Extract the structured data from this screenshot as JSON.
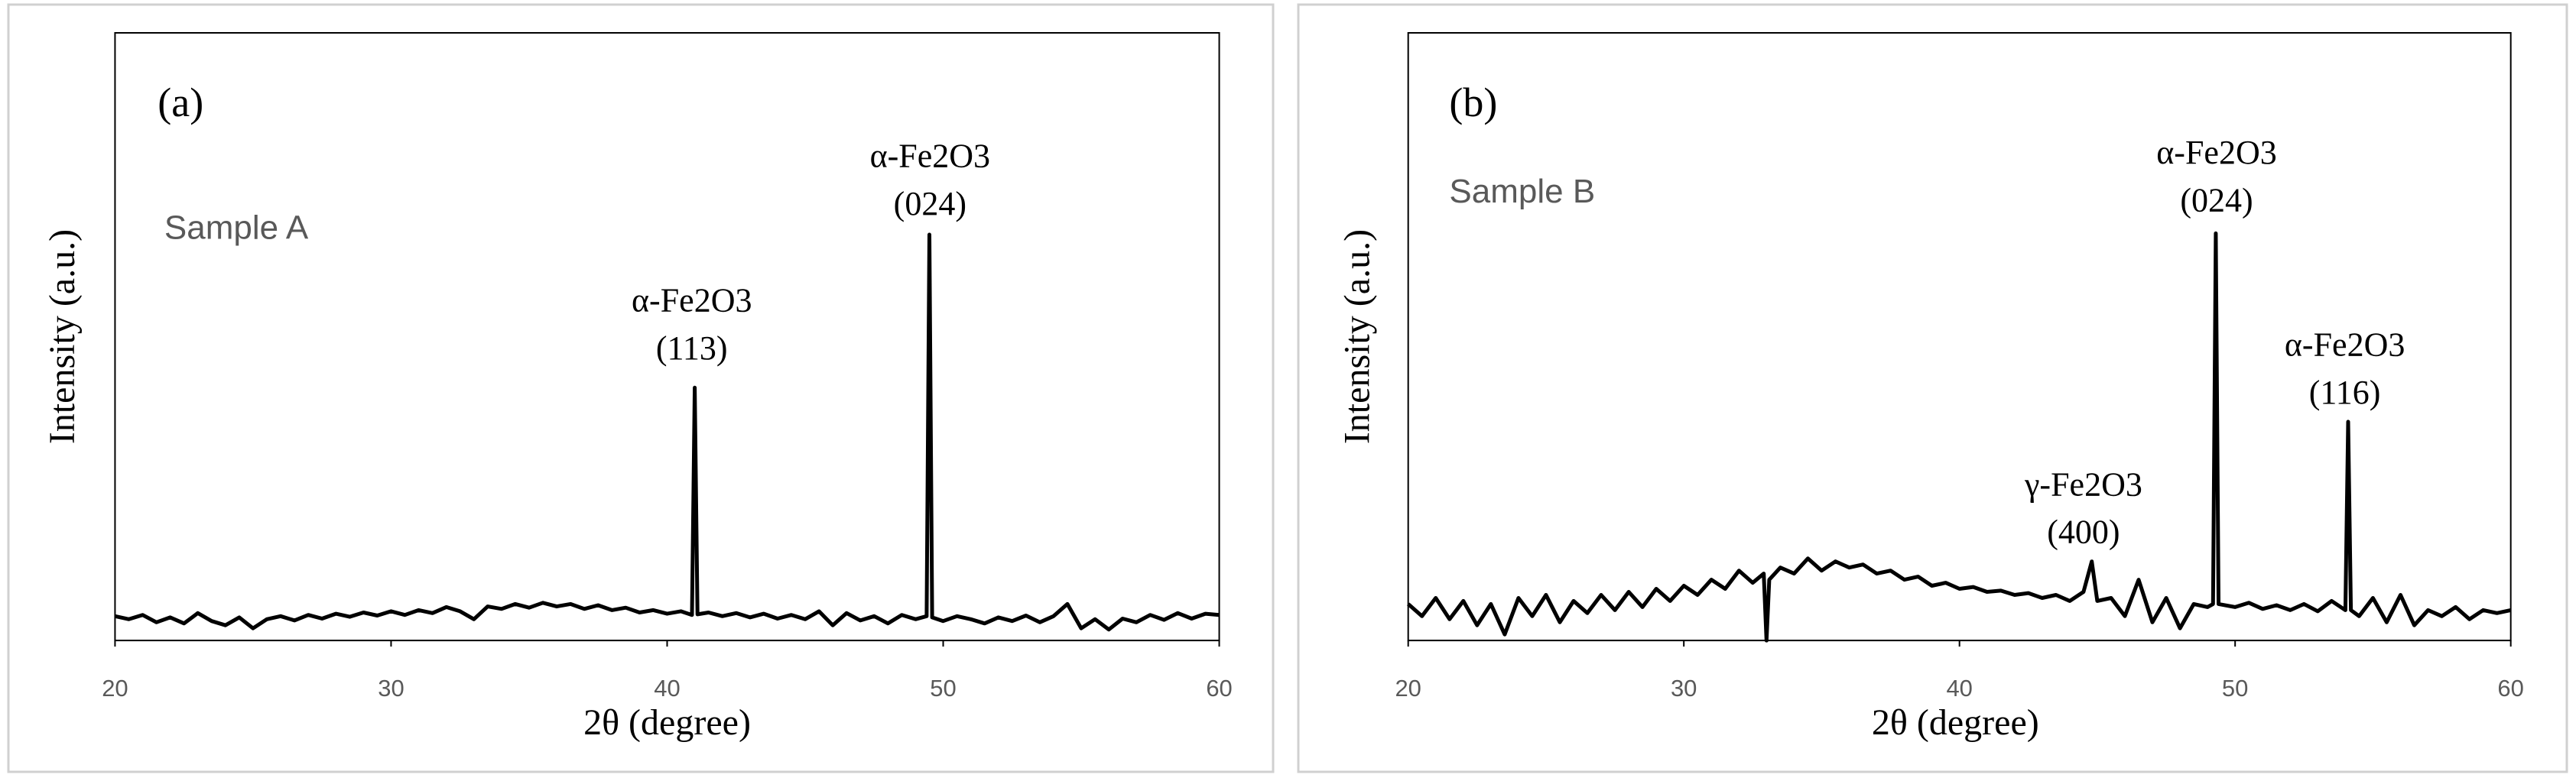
{
  "chart_data": [
    {
      "type": "line",
      "panel_label": "(a)",
      "sample_label": "Sample A",
      "x_label": "2θ (degree)",
      "y_label": "Intensity (a.u.)",
      "xlim": [
        20,
        60
      ],
      "xticks": [
        20,
        30,
        40,
        50,
        60
      ],
      "ylim": [
        0,
        100
      ],
      "color": "#000000",
      "x": [
        20,
        20.5,
        21,
        21.5,
        22,
        22.5,
        23,
        23.5,
        24,
        24.5,
        25,
        25.5,
        26,
        26.5,
        27,
        27.5,
        28,
        28.5,
        29,
        29.5,
        30,
        30.5,
        31,
        31.5,
        32,
        32.5,
        33,
        33.5,
        34,
        34.5,
        35,
        35.5,
        36,
        36.5,
        37,
        37.5,
        38,
        38.5,
        39,
        39.5,
        40,
        40.5,
        40.9,
        41,
        41.1,
        41.5,
        42,
        42.5,
        43,
        43.5,
        44,
        44.5,
        45,
        45.5,
        46,
        46.5,
        47,
        47.5,
        48,
        48.5,
        49,
        49.4,
        49.5,
        49.6,
        50,
        50.5,
        51,
        51.5,
        52,
        52.5,
        53,
        53.5,
        54,
        54.5,
        55,
        55.5,
        56,
        56.5,
        57,
        57.5,
        58,
        58.5,
        59,
        59.5,
        60
      ],
      "values": [
        4,
        3.5,
        4.2,
        3,
        3.8,
        2.8,
        4.5,
        3.2,
        2.5,
        3.8,
        2,
        3.5,
        4,
        3.3,
        4.2,
        3.6,
        4.4,
        3.9,
        4.6,
        4.1,
        4.8,
        4.2,
        5,
        4.5,
        5.5,
        4.8,
        3.5,
        5.6,
        5.2,
        6,
        5.4,
        6.2,
        5.6,
        6,
        5.2,
        5.8,
        5,
        5.4,
        4.6,
        5,
        4.4,
        4.8,
        4.2,
        41.6,
        4.3,
        4.6,
        4,
        4.5,
        3.8,
        4.4,
        3.6,
        4.2,
        3.5,
        4.8,
        2.5,
        4.5,
        3.3,
        4,
        2.8,
        4.2,
        3.5,
        4,
        66.8,
        3.8,
        3.2,
        4,
        3.5,
        2.8,
        3.8,
        3.2,
        4.1,
        3,
        4,
        6,
        2,
        3.5,
        1.8,
        3.6,
        3,
        4.2,
        3.4,
        4.5,
        3.6,
        4.4,
        4.2
      ],
      "annotations": [
        {
          "lines": [
            "α-Fe2O3",
            "(113)"
          ]
        },
        {
          "lines": [
            "α-Fe2O3",
            "(024)"
          ]
        }
      ]
    },
    {
      "type": "line",
      "panel_label": "(b)",
      "sample_label": "Sample B",
      "x_label": "2θ (degree)",
      "y_label": "Intensity (a.u.)",
      "xlim": [
        20,
        60
      ],
      "xticks": [
        20,
        30,
        40,
        50,
        60
      ],
      "ylim": [
        0,
        100
      ],
      "color": "#000000",
      "x": [
        20,
        20.5,
        21,
        21.5,
        22,
        22.5,
        23,
        23.5,
        24,
        24.5,
        25,
        25.5,
        26,
        26.5,
        27,
        27.5,
        28,
        28.5,
        29,
        29.5,
        30,
        30.5,
        31,
        31.5,
        32,
        32.5,
        32.9,
        33,
        33.1,
        33.5,
        34,
        34.5,
        35,
        35.5,
        36,
        36.5,
        37,
        37.5,
        38,
        38.5,
        39,
        39.5,
        40,
        40.5,
        41,
        41.5,
        42,
        42.5,
        43,
        43.5,
        44,
        44.5,
        44.8,
        45,
        45.5,
        46,
        46.5,
        47,
        47.5,
        48,
        48.5,
        49,
        49.2,
        49.3,
        49.4,
        50,
        50.5,
        51,
        51.5,
        52,
        52.5,
        53,
        53.5,
        54,
        54.1,
        54.2,
        54.5,
        55,
        55.5,
        56,
        56.5,
        57,
        57.5,
        58,
        58.5,
        59,
        59.5,
        60
      ],
      "values": [
        6,
        4,
        7,
        3.5,
        6.5,
        2.5,
        6,
        1,
        7,
        4,
        7.5,
        3,
        6.5,
        4.5,
        7.5,
        5,
        8,
        5.5,
        8.5,
        6.5,
        9,
        7.5,
        10,
        8.5,
        11.5,
        9.5,
        11,
        0,
        10,
        12,
        11,
        13.5,
        11.5,
        13,
        12,
        12.5,
        11,
        11.5,
        10,
        10.5,
        9,
        9.5,
        8.5,
        8.8,
        8,
        8.2,
        7.5,
        7.8,
        7,
        7.5,
        6.5,
        8,
        13,
        6.5,
        7,
        4,
        10,
        3,
        7,
        2,
        6,
        5.5,
        6,
        67,
        6,
        5.5,
        6.2,
        5.2,
        5.8,
        5,
        6,
        4.8,
        6.5,
        5,
        36,
        5,
        4,
        7,
        3,
        7.5,
        2.5,
        5,
        4,
        5.5,
        3.5,
        5,
        4.5,
        5
      ],
      "annotations": [
        {
          "lines": [
            "γ-Fe2O3",
            "(400)"
          ]
        },
        {
          "lines": [
            "α-Fe2O3",
            "(024)"
          ]
        },
        {
          "lines": [
            "α-Fe2O3",
            "(116)"
          ]
        }
      ]
    }
  ]
}
